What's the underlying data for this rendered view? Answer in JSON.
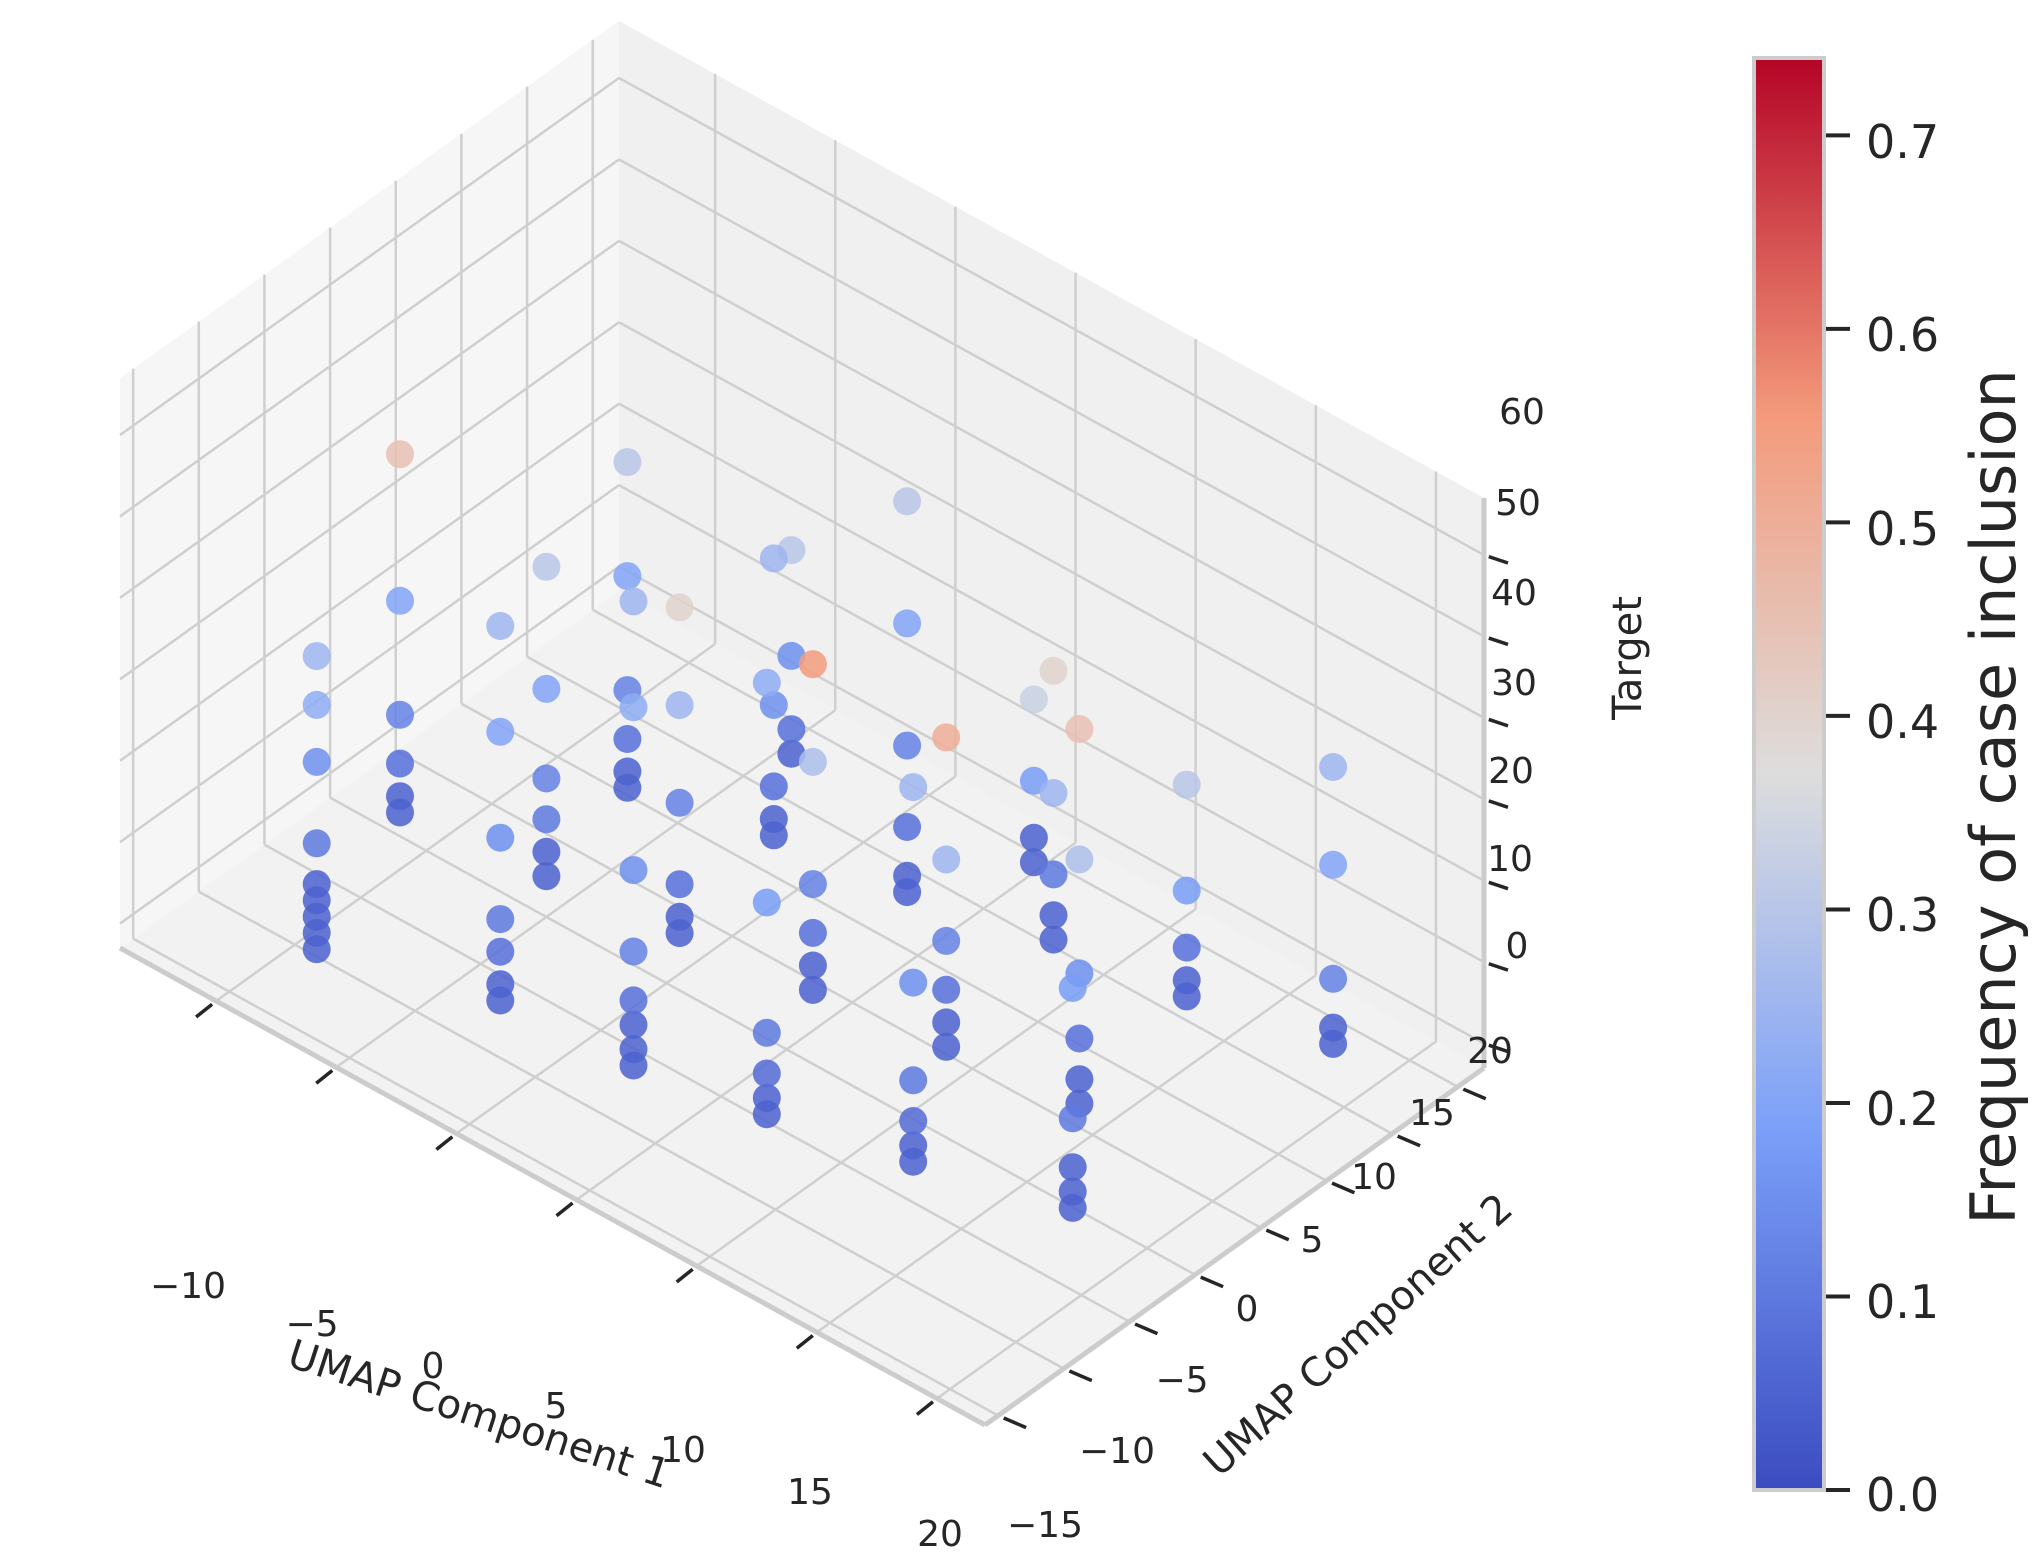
{
  "chart_data": {
    "type": "scatter3d",
    "xlabel": "UMAP Component 1",
    "ylabel": "UMAP Component 2",
    "zlabel": "Target",
    "colorbar_label": "Frequency of case inclusion",
    "colormap": "coolwarm",
    "xticks": [
      "−10",
      "−5",
      "0",
      "5",
      "10",
      "15",
      "20"
    ],
    "yticks": [
      "−15",
      "−10",
      "−5",
      "0",
      "5",
      "10",
      "15",
      "20"
    ],
    "zticks": [
      "0",
      "10",
      "20",
      "30",
      "40",
      "50",
      "60"
    ],
    "colorbar_ticks": [
      "0.0",
      "0.1",
      "0.2",
      "0.3",
      "0.4",
      "0.5",
      "0.6",
      "0.7"
    ],
    "xlim": [
      -14,
      22
    ],
    "ylim": [
      -16,
      22
    ],
    "zlim": [
      -3,
      67
    ],
    "clim": [
      0.0,
      0.74
    ],
    "points": [
      [
        -8,
        -12,
        2,
        0.05
      ],
      [
        -8,
        -12,
        4,
        0.05
      ],
      [
        -8,
        -12,
        6,
        0.05
      ],
      [
        -8,
        -12,
        8,
        0.05
      ],
      [
        -8,
        -12,
        10,
        0.05
      ],
      [
        -8,
        -12,
        15,
        0.1
      ],
      [
        -8,
        -12,
        25,
        0.15
      ],
      [
        -8,
        -12,
        32,
        0.22
      ],
      [
        -8,
        -12,
        38,
        0.25
      ],
      [
        -2,
        -9,
        2,
        0.05
      ],
      [
        -2,
        -9,
        4,
        0.05
      ],
      [
        -2,
        -9,
        8,
        0.08
      ],
      [
        -2,
        -9,
        12,
        0.1
      ],
      [
        -2,
        -9,
        22,
        0.15
      ],
      [
        -2,
        -9,
        35,
        0.2
      ],
      [
        -2,
        -9,
        48,
        0.25
      ],
      [
        3,
        -8,
        1,
        0.05
      ],
      [
        3,
        -8,
        3,
        0.05
      ],
      [
        3,
        -8,
        6,
        0.05
      ],
      [
        3,
        -8,
        9,
        0.08
      ],
      [
        3,
        -8,
        15,
        0.12
      ],
      [
        3,
        -8,
        25,
        0.15
      ],
      [
        3,
        -8,
        45,
        0.22
      ],
      [
        3,
        -8,
        58,
        0.25
      ],
      [
        8,
        -7,
        2,
        0.05
      ],
      [
        8,
        -7,
        4,
        0.05
      ],
      [
        8,
        -7,
        7,
        0.07
      ],
      [
        8,
        -7,
        12,
        0.1
      ],
      [
        8,
        -7,
        28,
        0.18
      ],
      [
        8,
        -7,
        55,
        0.22
      ],
      [
        13,
        -5,
        2,
        0.05
      ],
      [
        13,
        -5,
        4,
        0.05
      ],
      [
        13,
        -5,
        7,
        0.07
      ],
      [
        13,
        -5,
        12,
        0.1
      ],
      [
        13,
        -5,
        24,
        0.15
      ],
      [
        13,
        -5,
        48,
        0.25
      ],
      [
        18,
        -2,
        1,
        0.05
      ],
      [
        18,
        -2,
        3,
        0.05
      ],
      [
        18,
        -2,
        6,
        0.05
      ],
      [
        18,
        -2,
        12,
        0.1
      ],
      [
        18,
        -2,
        28,
        0.18
      ],
      [
        -10,
        -2,
        4,
        0.05
      ],
      [
        -10,
        -2,
        6,
        0.05
      ],
      [
        -10,
        -2,
        10,
        0.08
      ],
      [
        -10,
        -2,
        16,
        0.12
      ],
      [
        -10,
        -2,
        30,
        0.2
      ],
      [
        -10,
        -2,
        48,
        0.45
      ],
      [
        -5,
        0,
        2,
        0.05
      ],
      [
        -5,
        0,
        5,
        0.05
      ],
      [
        -5,
        0,
        9,
        0.1
      ],
      [
        -5,
        0,
        14,
        0.12
      ],
      [
        -5,
        0,
        25,
        0.2
      ],
      [
        -5,
        0,
        40,
        0.3
      ],
      [
        0,
        1,
        2,
        0.05
      ],
      [
        0,
        1,
        4,
        0.05
      ],
      [
        0,
        1,
        8,
        0.08
      ],
      [
        0,
        1,
        18,
        0.12
      ],
      [
        0,
        1,
        30,
        0.25
      ],
      [
        0,
        1,
        42,
        0.4
      ],
      [
        5,
        2,
        2,
        0.05
      ],
      [
        5,
        2,
        5,
        0.05
      ],
      [
        5,
        2,
        9,
        0.08
      ],
      [
        5,
        2,
        15,
        0.12
      ],
      [
        5,
        2,
        30,
        0.28
      ],
      [
        5,
        2,
        42,
        0.55
      ],
      [
        10,
        3,
        2,
        0.05
      ],
      [
        10,
        3,
        5,
        0.05
      ],
      [
        10,
        3,
        9,
        0.08
      ],
      [
        10,
        3,
        15,
        0.12
      ],
      [
        10,
        3,
        25,
        0.25
      ],
      [
        10,
        3,
        40,
        0.5
      ],
      [
        15,
        4,
        2,
        0.05
      ],
      [
        15,
        4,
        5,
        0.05
      ],
      [
        15,
        4,
        10,
        0.08
      ],
      [
        15,
        4,
        18,
        0.15
      ],
      [
        15,
        4,
        32,
        0.28
      ],
      [
        15,
        4,
        48,
        0.45
      ],
      [
        -6,
        8,
        2,
        0.05
      ],
      [
        -6,
        8,
        4,
        0.05
      ],
      [
        -6,
        8,
        8,
        0.08
      ],
      [
        -6,
        8,
        14,
        0.12
      ],
      [
        -6,
        8,
        28,
        0.2
      ],
      [
        -6,
        8,
        42,
        0.3
      ],
      [
        -1,
        10,
        2,
        0.05
      ],
      [
        -1,
        10,
        4,
        0.05
      ],
      [
        -1,
        10,
        8,
        0.08
      ],
      [
        -1,
        10,
        18,
        0.15
      ],
      [
        -1,
        10,
        36,
        0.25
      ],
      [
        4,
        11,
        2,
        0.05
      ],
      [
        4,
        11,
        4,
        0.05
      ],
      [
        4,
        11,
        10,
        0.08
      ],
      [
        4,
        11,
        20,
        0.12
      ],
      [
        4,
        11,
        35,
        0.2
      ],
      [
        4,
        11,
        50,
        0.3
      ],
      [
        9,
        13,
        2,
        0.05
      ],
      [
        9,
        13,
        5,
        0.05
      ],
      [
        9,
        13,
        10,
        0.1
      ],
      [
        9,
        13,
        20,
        0.25
      ],
      [
        9,
        13,
        35,
        0.4
      ],
      [
        14,
        14,
        2,
        0.05
      ],
      [
        14,
        14,
        4,
        0.05
      ],
      [
        14,
        14,
        8,
        0.08
      ],
      [
        14,
        14,
        15,
        0.18
      ],
      [
        14,
        14,
        28,
        0.3
      ],
      [
        19,
        16,
        2,
        0.05
      ],
      [
        19,
        16,
        4,
        0.05
      ],
      [
        19,
        16,
        10,
        0.12
      ],
      [
        19,
        16,
        24,
        0.2
      ],
      [
        19,
        16,
        36,
        0.25
      ],
      [
        6,
        17,
        2,
        0.05
      ],
      [
        6,
        17,
        5,
        0.05
      ],
      [
        6,
        17,
        12,
        0.18
      ],
      [
        6,
        17,
        22,
        0.33
      ],
      [
        -3,
        15,
        3,
        0.05
      ],
      [
        -3,
        15,
        6,
        0.08
      ],
      [
        -3,
        15,
        15,
        0.15
      ],
      [
        -3,
        15,
        28,
        0.3
      ]
    ]
  }
}
